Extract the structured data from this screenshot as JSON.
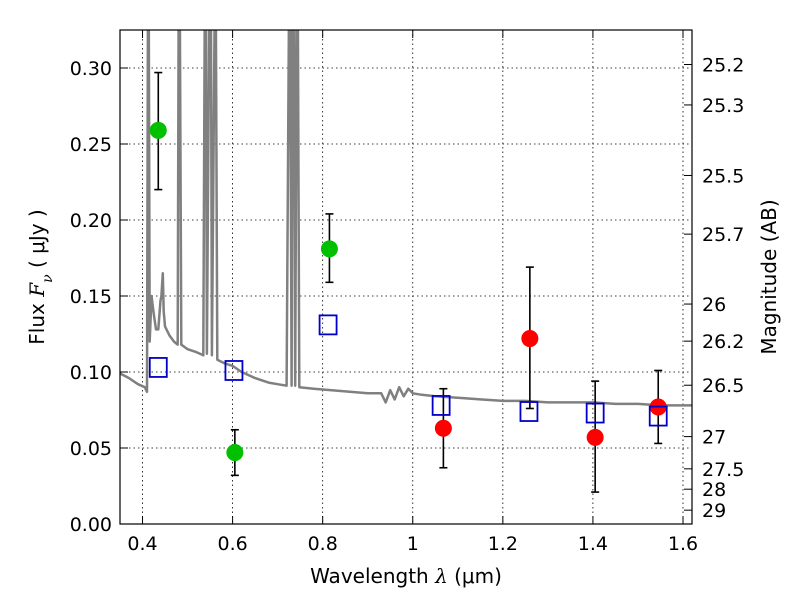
{
  "chart_data": {
    "type": "scatter",
    "xlabel": "Wavelength  λ (μm)",
    "ylabel": "Flux  Fν  ( μJy )",
    "ylabel_parts": {
      "prefix": "Flux  ",
      "symbol": "F",
      "sub": "ν",
      "suffix": "  ( μJy )"
    },
    "xlabel_parts": {
      "prefix": "Wavelength  ",
      "symbol": "λ",
      "suffix": " (μm)"
    },
    "y2label": "Magnitude (AB)",
    "xlim": [
      0.35,
      1.62
    ],
    "ylim": [
      0.0,
      0.325
    ],
    "grid": true,
    "x_ticks": [
      0.4,
      0.6,
      0.8,
      1.0,
      1.2,
      1.4,
      1.6
    ],
    "x_tick_labels": [
      "0.4",
      "0.6",
      "0.8",
      "1",
      "1.2",
      "1.4",
      "1.6"
    ],
    "y_ticks": [
      0.0,
      0.05,
      0.1,
      0.15,
      0.2,
      0.25,
      0.3
    ],
    "y_tick_labels": [
      "0.00",
      "0.05",
      "0.10",
      "0.15",
      "0.20",
      "0.25",
      "0.30"
    ],
    "y2_ticks": [
      {
        "label": "25.2",
        "flux": 0.3023
      },
      {
        "label": "25.3",
        "flux": 0.2757
      },
      {
        "label": "25.5",
        "flux": 0.2293
      },
      {
        "label": "25.7",
        "flux": 0.1907
      },
      {
        "label": "26",
        "flux": 0.1447
      },
      {
        "label": "26.2",
        "flux": 0.1203
      },
      {
        "label": "26.5",
        "flux": 0.0913
      },
      {
        "label": "27",
        "flux": 0.0575
      },
      {
        "label": "27.5",
        "flux": 0.0363
      },
      {
        "label": "28",
        "flux": 0.0229
      },
      {
        "label": "29",
        "flux": 0.0091
      }
    ],
    "series": [
      {
        "color": "#00c000",
        "marker": "circle",
        "points": [
          {
            "x": 0.435,
            "y": 0.259,
            "lo": 0.22,
            "hi": 0.297
          },
          {
            "x": 0.605,
            "y": 0.047,
            "lo": 0.032,
            "hi": 0.062
          },
          {
            "x": 0.815,
            "y": 0.181,
            "lo": 0.159,
            "hi": 0.204
          }
        ]
      },
      {
        "color": "#ff0000",
        "marker": "circle",
        "points": [
          {
            "x": 1.068,
            "y": 0.063,
            "lo": 0.037,
            "hi": 0.089
          },
          {
            "x": 1.26,
            "y": 0.122,
            "lo": 0.076,
            "hi": 0.169
          },
          {
            "x": 1.405,
            "y": 0.057,
            "lo": 0.021,
            "hi": 0.094
          },
          {
            "x": 1.545,
            "y": 0.077,
            "lo": 0.053,
            "hi": 0.101
          }
        ]
      },
      {
        "color": "#0000cc",
        "marker": "open-square",
        "points": [
          {
            "x": 0.435,
            "y": 0.103
          },
          {
            "x": 0.603,
            "y": 0.101
          },
          {
            "x": 0.812,
            "y": 0.131
          },
          {
            "x": 1.063,
            "y": 0.078
          },
          {
            "x": 1.258,
            "y": 0.074
          },
          {
            "x": 1.405,
            "y": 0.073
          },
          {
            "x": 1.545,
            "y": 0.071
          }
        ]
      }
    ],
    "model_spectrum": {
      "color": "#808080",
      "points": [
        [
          0.35,
          0.099
        ],
        [
          0.37,
          0.096
        ],
        [
          0.39,
          0.092
        ],
        [
          0.405,
          0.09
        ],
        [
          0.41,
          0.087
        ],
        [
          0.412,
          0.33
        ],
        [
          0.414,
          0.33
        ],
        [
          0.416,
          0.12
        ],
        [
          0.42,
          0.15
        ],
        [
          0.425,
          0.138
        ],
        [
          0.43,
          0.128
        ],
        [
          0.435,
          0.128
        ],
        [
          0.44,
          0.147
        ],
        [
          0.442,
          0.15
        ],
        [
          0.445,
          0.165
        ],
        [
          0.447,
          0.14
        ],
        [
          0.45,
          0.13
        ],
        [
          0.46,
          0.124
        ],
        [
          0.47,
          0.12
        ],
        [
          0.478,
          0.118
        ],
        [
          0.48,
          0.33
        ],
        [
          0.483,
          0.33
        ],
        [
          0.486,
          0.118
        ],
        [
          0.5,
          0.115
        ],
        [
          0.52,
          0.113
        ],
        [
          0.535,
          0.111
        ],
        [
          0.538,
          0.33
        ],
        [
          0.541,
          0.33
        ],
        [
          0.543,
          0.112
        ],
        [
          0.548,
          0.33
        ],
        [
          0.552,
          0.33
        ],
        [
          0.554,
          0.111
        ],
        [
          0.56,
          0.33
        ],
        [
          0.563,
          0.33
        ],
        [
          0.566,
          0.108
        ],
        [
          0.58,
          0.106
        ],
        [
          0.6,
          0.104
        ],
        [
          0.62,
          0.1
        ],
        [
          0.65,
          0.096
        ],
        [
          0.68,
          0.093
        ],
        [
          0.7,
          0.092
        ],
        [
          0.72,
          0.091
        ],
        [
          0.725,
          0.33
        ],
        [
          0.728,
          0.33
        ],
        [
          0.731,
          0.091
        ],
        [
          0.733,
          0.33
        ],
        [
          0.736,
          0.33
        ],
        [
          0.739,
          0.091
        ],
        [
          0.742,
          0.33
        ],
        [
          0.745,
          0.33
        ],
        [
          0.748,
          0.09
        ],
        [
          0.78,
          0.089
        ],
        [
          0.82,
          0.088
        ],
        [
          0.86,
          0.087
        ],
        [
          0.9,
          0.086
        ],
        [
          0.93,
          0.086
        ],
        [
          0.94,
          0.08
        ],
        [
          0.95,
          0.088
        ],
        [
          0.96,
          0.082
        ],
        [
          0.97,
          0.09
        ],
        [
          0.98,
          0.084
        ],
        [
          0.99,
          0.089
        ],
        [
          1.0,
          0.086
        ],
        [
          1.02,
          0.085
        ],
        [
          1.05,
          0.084
        ],
        [
          1.1,
          0.083
        ],
        [
          1.15,
          0.082
        ],
        [
          1.2,
          0.081
        ],
        [
          1.25,
          0.081
        ],
        [
          1.3,
          0.08
        ],
        [
          1.35,
          0.08
        ],
        [
          1.4,
          0.08
        ],
        [
          1.45,
          0.079
        ],
        [
          1.5,
          0.079
        ],
        [
          1.55,
          0.078
        ],
        [
          1.6,
          0.078
        ],
        [
          1.62,
          0.078
        ]
      ]
    }
  }
}
